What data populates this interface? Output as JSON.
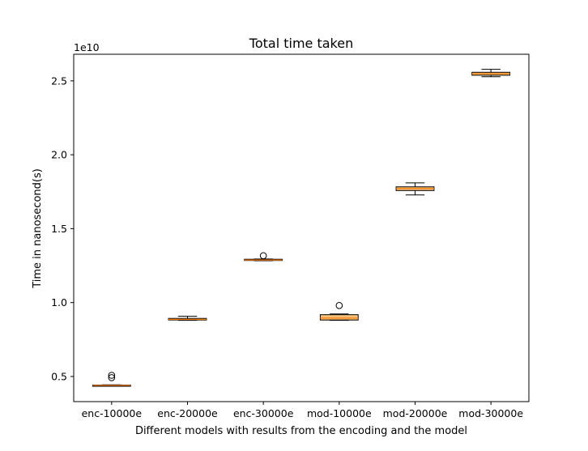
{
  "chart_data": {
    "type": "box",
    "title": "Total time taken",
    "xlabel": "Different models with results from the encoding and the model",
    "ylabel": "Time in nanosecond(s)",
    "y_offset_label": "1e10",
    "y_scale_factor": 10000000000,
    "ylim": [
      0.33,
      2.68
    ],
    "yticks": [
      0.5,
      1.0,
      1.5,
      2.0,
      2.5
    ],
    "ytick_labels": [
      "0.5",
      "1.0",
      "1.5",
      "2.0",
      "2.5"
    ],
    "grid": false,
    "box_color": "#f5c07a",
    "median_color": "#ff7f0e",
    "categories": [
      "enc-10000e",
      "enc-20000e",
      "enc-30000e",
      "mod-10000e",
      "mod-20000e",
      "mod-30000e"
    ],
    "boxes": [
      {
        "label": "enc-10000e",
        "whislo": 4.38,
        "q1": 4.39,
        "med": 4.4,
        "q3": 4.42,
        "whishi": 4.44,
        "fliers": [
          4.92,
          5.08
        ]
      },
      {
        "label": "enc-20000e",
        "whislo": 8.8,
        "q1": 8.82,
        "med": 8.86,
        "q3": 8.93,
        "whishi": 9.07,
        "fliers": []
      },
      {
        "label": "enc-30000e",
        "whislo": 12.83,
        "q1": 12.85,
        "med": 12.88,
        "q3": 12.93,
        "whishi": 12.95,
        "fliers": [
          13.17
        ]
      },
      {
        "label": "mod-10000e",
        "whislo": 8.8,
        "q1": 8.82,
        "med": 8.95,
        "q3": 9.18,
        "whishi": 9.23,
        "fliers": [
          9.8
        ]
      },
      {
        "label": "mod-20000e",
        "whislo": 17.28,
        "q1": 17.58,
        "med": 17.72,
        "q3": 17.83,
        "whishi": 18.1,
        "fliers": []
      },
      {
        "label": "mod-30000e",
        "whislo": 25.28,
        "q1": 25.38,
        "med": 25.48,
        "q3": 25.58,
        "whishi": 25.78,
        "fliers": []
      }
    ]
  }
}
